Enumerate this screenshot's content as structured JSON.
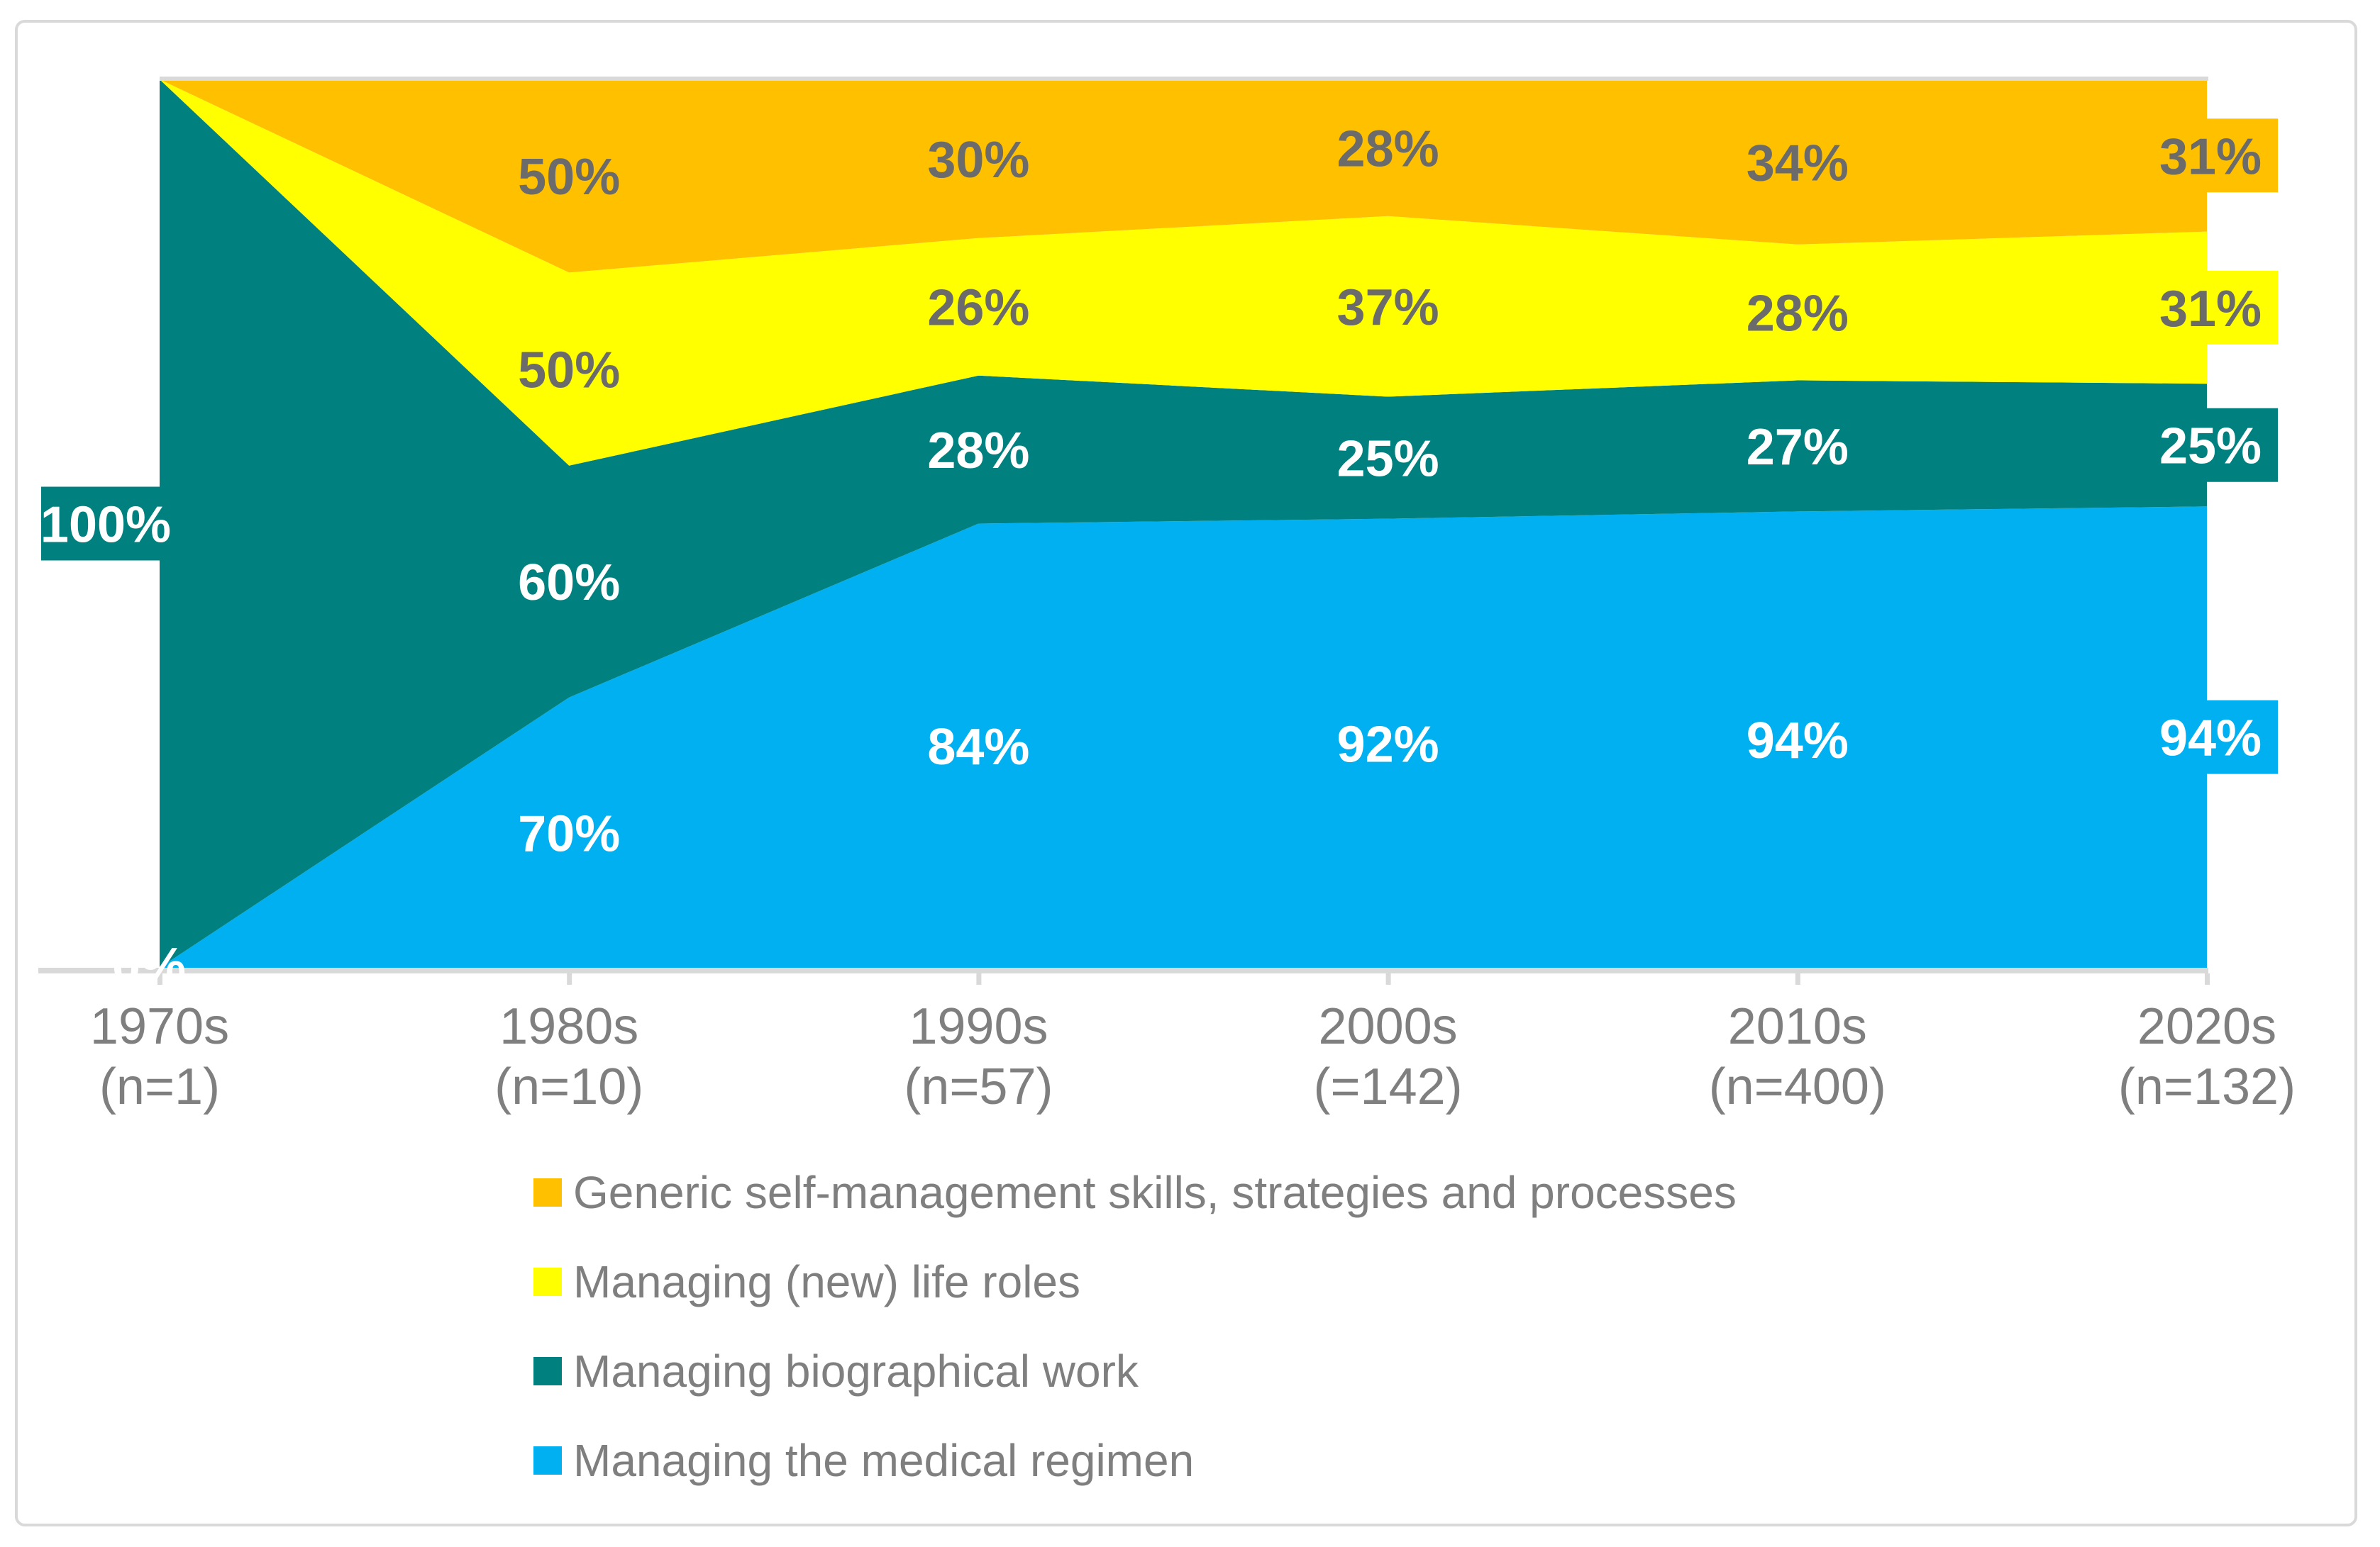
{
  "chart_data": {
    "type": "area",
    "subtype": "stacked-normalized-per-category",
    "title": "",
    "xlabel": "",
    "ylabel": "",
    "gridlines": false,
    "legend_position": "bottom-left",
    "categories": [
      "1970s",
      "1980s",
      "1990s",
      "2000s",
      "2010s",
      "2020s"
    ],
    "category_sublabels": [
      "(n=1)",
      "(n=10)",
      "(n=57)",
      "(=142)",
      "(n=400)",
      "(n=132)"
    ],
    "axis": {
      "line_color": "#D9D9D9",
      "text_color": "#7F7F7F"
    },
    "series": [
      {
        "name": "Managing the medical regimen",
        "color": "#00B0F0",
        "label_color": "#FFFFFF",
        "values": [
          0,
          70,
          84,
          92,
          94,
          94
        ],
        "labels": [
          "0%",
          "70%",
          "84%",
          "92%",
          "94%",
          "94%"
        ]
      },
      {
        "name": "Managing biographical work",
        "color": "#00807E",
        "label_color": "#FFFFFF",
        "values": [
          100,
          60,
          28,
          25,
          27,
          25
        ],
        "labels": [
          "100%",
          "60%",
          "28%",
          "25%",
          "27%",
          "25%"
        ]
      },
      {
        "name": "Managing (new) life roles",
        "color": "#FFFF00",
        "label_color": "#6B6B6B",
        "values": [
          0,
          50,
          26,
          37,
          28,
          31
        ],
        "labels": [
          "",
          "50%",
          "26%",
          "37%",
          "28%",
          "31%"
        ]
      },
      {
        "name": "Generic self-management skills, strategies and processes",
        "color": "#FFC000",
        "label_color": "#6B6B6B",
        "values": [
          0,
          50,
          30,
          28,
          34,
          31
        ],
        "labels": [
          "",
          "50%",
          "30%",
          "28%",
          "34%",
          "31%"
        ]
      }
    ],
    "notes": {
      "first_point_block_label": "100%",
      "first_point_zero_label": "0%",
      "last_point_labels_have_colored_blocks": true
    }
  },
  "legend": {
    "order": "top-to-bottom: orange, yellow, teal, blue",
    "text_color": "#7F7F7F"
  }
}
